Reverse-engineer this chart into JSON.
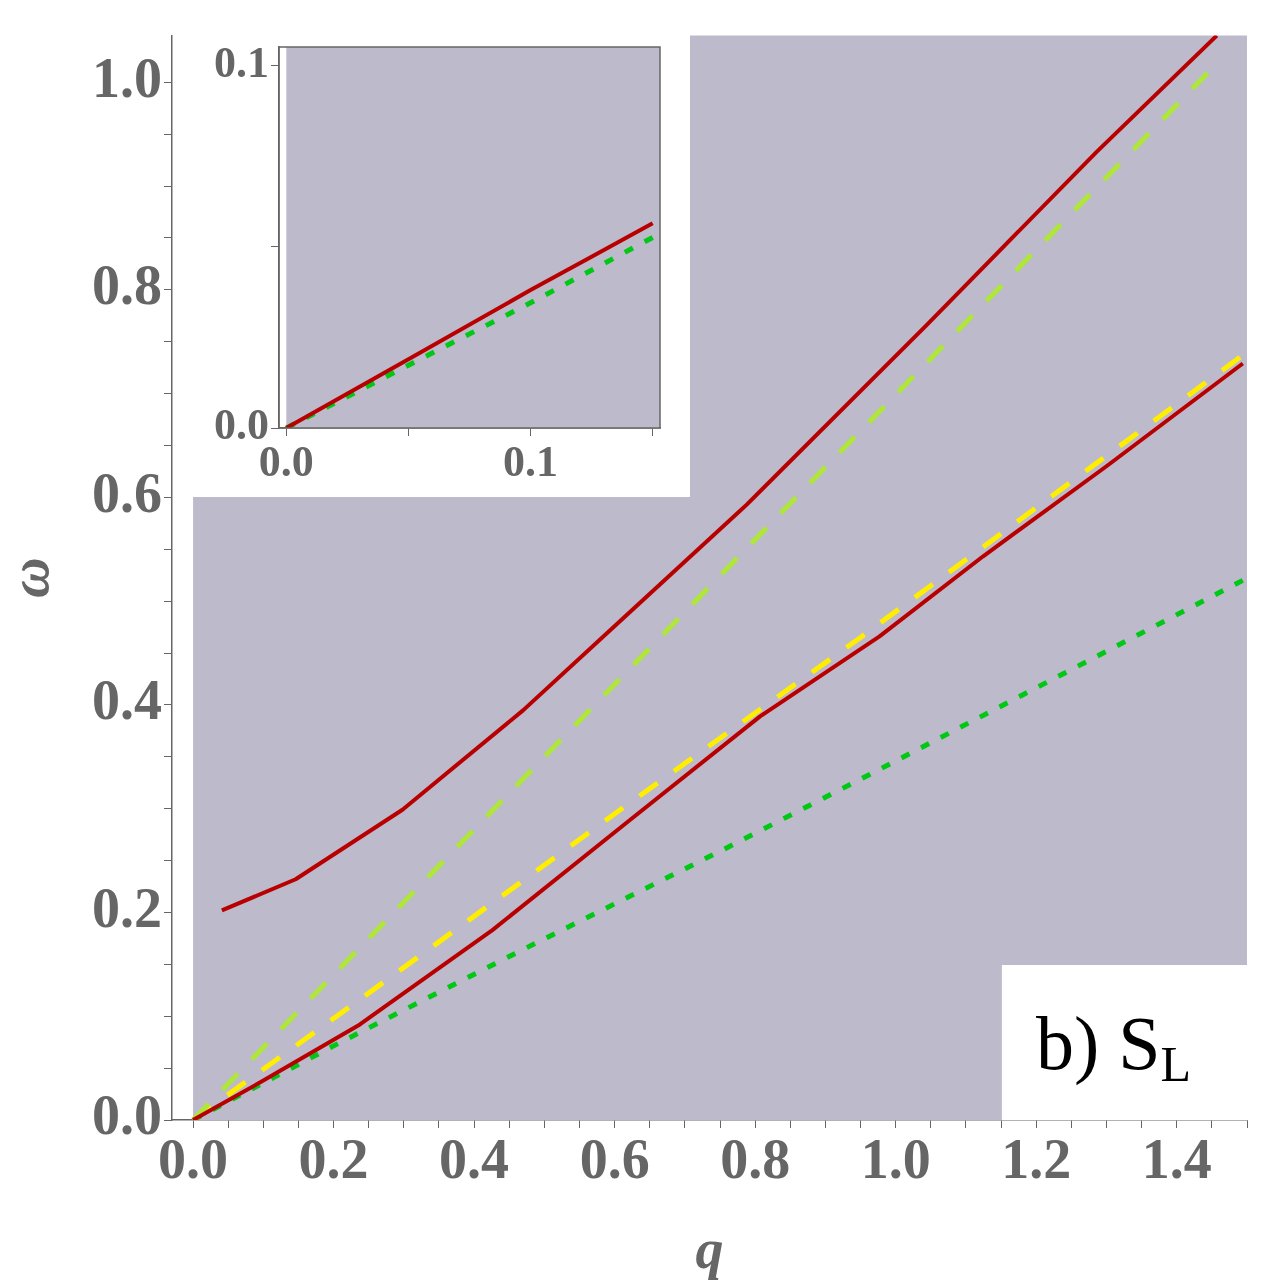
{
  "chart_data": [
    {
      "type": "line",
      "xlabel": "q",
      "ylabel": "ω",
      "xlim": [
        -0.03,
        1.5
      ],
      "ylim": [
        0,
        1.045
      ],
      "xticks": [
        {
          "value": 0,
          "label": "0.0"
        },
        {
          "value": 0.05,
          "label": null
        },
        {
          "value": 0.1,
          "label": null
        },
        {
          "value": 0.15,
          "label": null
        },
        0.2,
        {
          "value": 0.25,
          "label": null
        },
        {
          "value": 0.3,
          "label": null
        },
        {
          "value": 0.35,
          "label": null
        },
        0.4,
        {
          "value": 0.45,
          "label": null
        },
        {
          "value": 0.5,
          "label": null
        },
        {
          "value": 0.55,
          "label": null
        },
        0.6,
        {
          "value": 0.65,
          "label": null
        },
        {
          "value": 0.7,
          "label": null
        },
        {
          "value": 0.75,
          "label": null
        },
        0.8,
        {
          "value": 0.85,
          "label": null
        },
        {
          "value": 0.9,
          "label": null
        },
        {
          "value": 0.95,
          "label": null
        },
        {
          "value": 1,
          "label": "1.0"
        },
        {
          "value": 1.05,
          "label": null
        },
        {
          "value": 1.1,
          "label": null
        },
        {
          "value": 1.15,
          "label": null
        },
        1.2,
        {
          "value": 1.25,
          "label": null
        },
        {
          "value": 1.3,
          "label": null
        },
        {
          "value": 1.35,
          "label": null
        },
        1.4,
        {
          "value": 1.45,
          "label": null
        },
        {
          "value": 1.5,
          "label": null
        }
      ],
      "yticks": [
        {
          "value": 0,
          "label": "0.0"
        },
        {
          "value": 0.05,
          "label": null
        },
        {
          "value": 0.1,
          "label": null
        },
        {
          "value": 0.15,
          "label": null
        },
        0.2,
        {
          "value": 0.25,
          "label": null
        },
        {
          "value": 0.3,
          "label": null
        },
        {
          "value": 0.35,
          "label": null
        },
        0.4,
        {
          "value": 0.45,
          "label": null
        },
        {
          "value": 0.5,
          "label": null
        },
        {
          "value": 0.55,
          "label": null
        },
        0.6,
        {
          "value": 0.65,
          "label": null
        },
        {
          "value": 0.7,
          "label": null
        },
        {
          "value": 0.75,
          "label": null
        },
        0.8,
        {
          "value": 0.85,
          "label": null
        },
        {
          "value": 0.9,
          "label": null
        },
        {
          "value": 0.95,
          "label": null
        },
        {
          "value": 1,
          "label": "1.0"
        }
      ],
      "grid": false,
      "legend": false,
      "marker": "none",
      "annotations": [
        "b) S$_{L}$"
      ],
      "series": [
        {
          "color": "#b80000",
          "line_style": "solid",
          "x": [
            0.041,
            0.146,
            0.298,
            0.47,
            0.616,
            0.788,
            1.044,
            1.286,
            1.457
          ],
          "values": [
            0.202,
            0.232,
            0.299,
            0.395,
            0.486,
            0.593,
            0.766,
            0.933,
            1.045
          ]
        },
        {
          "color": "#b80000",
          "line_style": "solid",
          "x": [
            0,
            0.1,
            0.235,
            0.426,
            0.616,
            0.807,
            0.977,
            1.124,
            1.3,
            1.494
          ],
          "values": [
            0,
            0.038,
            0.091,
            0.183,
            0.286,
            0.389,
            0.466,
            0.543,
            0.63,
            0.729
          ]
        },
        {
          "color": "#aee63a",
          "line_style": "dashed",
          "x": [
            0,
            0.5,
            1.0,
            1.444
          ],
          "values": [
            0,
            0.35,
            0.699,
            1.009
          ]
        },
        {
          "color": "#ffee00",
          "line_style": "dashed",
          "x": [
            0,
            0.231,
            0.608,
            0.95,
            1.49
          ],
          "values": [
            0,
            0.113,
            0.299,
            0.465,
            0.735
          ]
        },
        {
          "color": "#00c814",
          "line_style": "dotted",
          "x": [
            0,
            0.21,
            0.457,
            0.753,
            0.963,
            1.494
          ],
          "values": [
            0,
            0.075,
            0.16,
            0.26,
            0.333,
            0.52
          ]
        }
      ]
    },
    {
      "type": "line",
      "xlim": [
        -0.003,
        0.153
      ],
      "ylim": [
        0,
        0.105
      ],
      "xticks": [
        {
          "value": 0,
          "label": "0.0"
        },
        {
          "value": 0.05,
          "label": null
        },
        0.1,
        {
          "value": 0.15,
          "label": null
        }
      ],
      "yticks": [
        {
          "value": 0,
          "label": "0.0"
        },
        {
          "value": 0.05,
          "label": null
        },
        0.1
      ],
      "grid": false,
      "legend": false,
      "marker": "none",
      "series": [
        {
          "color": "#b80000",
          "line_style": "solid",
          "x": [
            0,
            0.052,
            0.1,
            0.15
          ],
          "values": [
            0,
            0.0197,
            0.038,
            0.0564
          ]
        },
        {
          "color": "#00c814",
          "line_style": "dotted",
          "x": [
            0,
            0.052,
            0.1,
            0.15
          ],
          "values": [
            0,
            0.018,
            0.0345,
            0.0525
          ]
        }
      ]
    }
  ]
}
